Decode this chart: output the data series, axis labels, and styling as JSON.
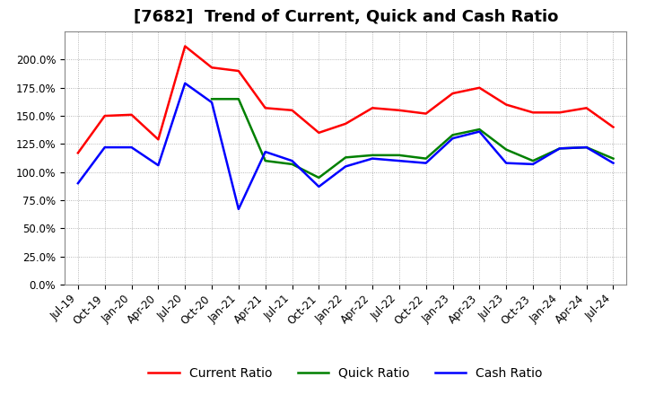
{
  "title": "[7682]  Trend of Current, Quick and Cash Ratio",
  "x_labels": [
    "Jul-19",
    "Oct-19",
    "Jan-20",
    "Apr-20",
    "Jul-20",
    "Oct-20",
    "Jan-21",
    "Apr-21",
    "Jul-21",
    "Oct-21",
    "Jan-22",
    "Apr-22",
    "Jul-22",
    "Oct-22",
    "Jan-23",
    "Apr-23",
    "Jul-23",
    "Oct-23",
    "Jan-24",
    "Apr-24",
    "Jul-24"
  ],
  "current_ratio": [
    1.17,
    1.5,
    1.51,
    1.29,
    2.12,
    1.93,
    1.9,
    1.57,
    1.55,
    1.35,
    1.43,
    1.57,
    1.55,
    1.52,
    1.7,
    1.75,
    1.6,
    1.53,
    1.53,
    1.57,
    1.4
  ],
  "quick_ratio": [
    null,
    null,
    null,
    null,
    null,
    1.65,
    1.65,
    1.1,
    1.07,
    0.95,
    1.13,
    1.15,
    1.15,
    1.12,
    1.33,
    1.38,
    1.2,
    1.1,
    1.21,
    1.22,
    1.12
  ],
  "cash_ratio": [
    0.9,
    1.22,
    1.22,
    1.06,
    1.79,
    1.62,
    0.67,
    1.18,
    1.1,
    0.87,
    1.05,
    1.12,
    1.1,
    1.08,
    1.3,
    1.36,
    1.08,
    1.07,
    1.21,
    1.22,
    1.08
  ],
  "current_color": "#FF0000",
  "quick_color": "#008000",
  "cash_color": "#0000FF",
  "ylim": [
    0.0,
    2.25
  ],
  "yticks": [
    0.0,
    0.25,
    0.5,
    0.75,
    1.0,
    1.25,
    1.5,
    1.75,
    2.0
  ],
  "background_color": "#FFFFFF",
  "grid_color": "#999999",
  "title_fontsize": 13,
  "tick_fontsize": 8.5,
  "legend_fontsize": 10,
  "linewidth": 1.8
}
